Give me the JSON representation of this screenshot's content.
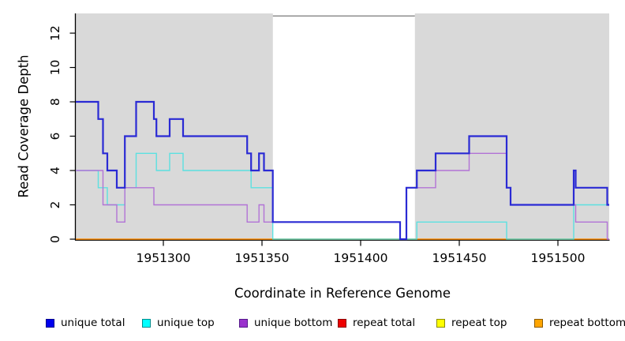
{
  "chart_data": {
    "type": "line",
    "subtype": "step-coverage",
    "title": "",
    "xlabel": "Coordinate in Reference Genome",
    "ylabel": "Read Coverage Depth",
    "xlim": [
      1951255.6,
      1951526
    ],
    "ylim": [
      0,
      13.15
    ],
    "grid": false,
    "background_color": "#d9d9d9",
    "x_ticks": [
      {
        "value": 1951300,
        "label": "1951300"
      },
      {
        "value": 1951350,
        "label": "1951350"
      },
      {
        "value": 1951400,
        "label": "1951400"
      },
      {
        "value": 1951450,
        "label": "1951450"
      },
      {
        "value": 1951500,
        "label": "1951500"
      }
    ],
    "y_ticks": [
      {
        "value": 0,
        "label": "0"
      },
      {
        "value": 2,
        "label": "2"
      },
      {
        "value": 4,
        "label": "4"
      },
      {
        "value": 6,
        "label": "6"
      },
      {
        "value": 8,
        "label": "8"
      },
      {
        "value": 10,
        "label": "10"
      },
      {
        "value": 12,
        "label": "12"
      }
    ],
    "shaded_regions": [
      {
        "x0": 1951255.6,
        "x1": 1951355.5
      },
      {
        "x0": 1951427.5,
        "x1": 1951526
      }
    ],
    "gap_region": {
      "x0": 1951355.5,
      "x1": 1951427.5,
      "top_value": 13,
      "border_color": "#8f8f8f"
    },
    "series": [
      {
        "name": "repeat total",
        "color": "#dd0000",
        "width": 1,
        "opacity": 1,
        "points": [
          [
            1951255.6,
            0
          ],
          [
            1951526,
            0
          ]
        ]
      },
      {
        "name": "repeat top",
        "color": "#ffff00",
        "width": 1,
        "opacity": 1,
        "points": [
          [
            1951255.6,
            0
          ],
          [
            1951526,
            0
          ]
        ]
      },
      {
        "name": "repeat bottom",
        "color": "#ff8c00",
        "width": 1.6,
        "opacity": 1,
        "points": [
          [
            1951255.6,
            0
          ],
          [
            1951526,
            0
          ]
        ]
      },
      {
        "name": "unique top",
        "color": "#45e2e2",
        "width": 1.4,
        "opacity": 0.85,
        "points": [
          [
            1951255.6,
            4
          ],
          [
            1951267,
            3
          ],
          [
            1951271.6,
            2
          ],
          [
            1951280.5,
            3
          ],
          [
            1951286.2,
            5
          ],
          [
            1951296.5,
            4
          ],
          [
            1951303.2,
            5
          ],
          [
            1951310,
            4
          ],
          [
            1951344.5,
            3
          ],
          [
            1951355.5,
            0
          ],
          [
            1951428.5,
            1
          ],
          [
            1951474,
            0
          ],
          [
            1951508,
            2
          ],
          [
            1951526,
            2
          ]
        ]
      },
      {
        "name": "unique bottom",
        "color": "#b273d6",
        "width": 1.4,
        "opacity": 1,
        "points": [
          [
            1951255.6,
            4
          ],
          [
            1951269.4,
            2
          ],
          [
            1951276.4,
            1
          ],
          [
            1951280.5,
            3
          ],
          [
            1951295.2,
            2
          ],
          [
            1951342.5,
            1
          ],
          [
            1951348.5,
            2
          ],
          [
            1951351,
            1
          ],
          [
            1951420,
            0
          ],
          [
            1951423.2,
            3
          ],
          [
            1951438,
            4
          ],
          [
            1951455,
            5
          ],
          [
            1951474,
            3
          ],
          [
            1951476,
            2
          ],
          [
            1951509,
            1
          ],
          [
            1951525,
            0
          ],
          [
            1951526,
            0
          ]
        ]
      },
      {
        "name": "unique total",
        "color": "#2a2ad4",
        "width": 2.2,
        "opacity": 1,
        "points": [
          [
            1951255.6,
            8
          ],
          [
            1951267,
            7
          ],
          [
            1951269.4,
            5
          ],
          [
            1951271.6,
            4
          ],
          [
            1951276.4,
            3
          ],
          [
            1951280.5,
            6
          ],
          [
            1951286.2,
            8
          ],
          [
            1951295.2,
            7
          ],
          [
            1951296.5,
            6
          ],
          [
            1951303.2,
            7
          ],
          [
            1951310,
            6
          ],
          [
            1951342.5,
            5
          ],
          [
            1951344.5,
            4
          ],
          [
            1951348.5,
            5
          ],
          [
            1951351,
            4
          ],
          [
            1951355.5,
            1
          ],
          [
            1951420,
            0
          ],
          [
            1951423.2,
            3
          ],
          [
            1951428.5,
            4
          ],
          [
            1951438,
            5
          ],
          [
            1951455,
            6
          ],
          [
            1951474,
            3
          ],
          [
            1951476,
            2
          ],
          [
            1951508,
            4
          ],
          [
            1951509,
            3
          ],
          [
            1951525,
            2
          ],
          [
            1951526,
            2
          ]
        ]
      }
    ],
    "legend": [
      {
        "label": "unique total",
        "fill": "#0000ee",
        "border": "#00008b"
      },
      {
        "label": "unique top",
        "fill": "#00ffff",
        "border": "#008b8b"
      },
      {
        "label": "unique bottom",
        "fill": "#9a32cd",
        "border": "#551a8b"
      },
      {
        "label": "repeat total",
        "fill": "#ee0000",
        "border": "#8b0000"
      },
      {
        "label": "repeat top",
        "fill": "#ffff00",
        "border": "#8b8b00"
      },
      {
        "label": "repeat bottom",
        "fill": "#ffa500",
        "border": "#8b5a00"
      }
    ]
  }
}
